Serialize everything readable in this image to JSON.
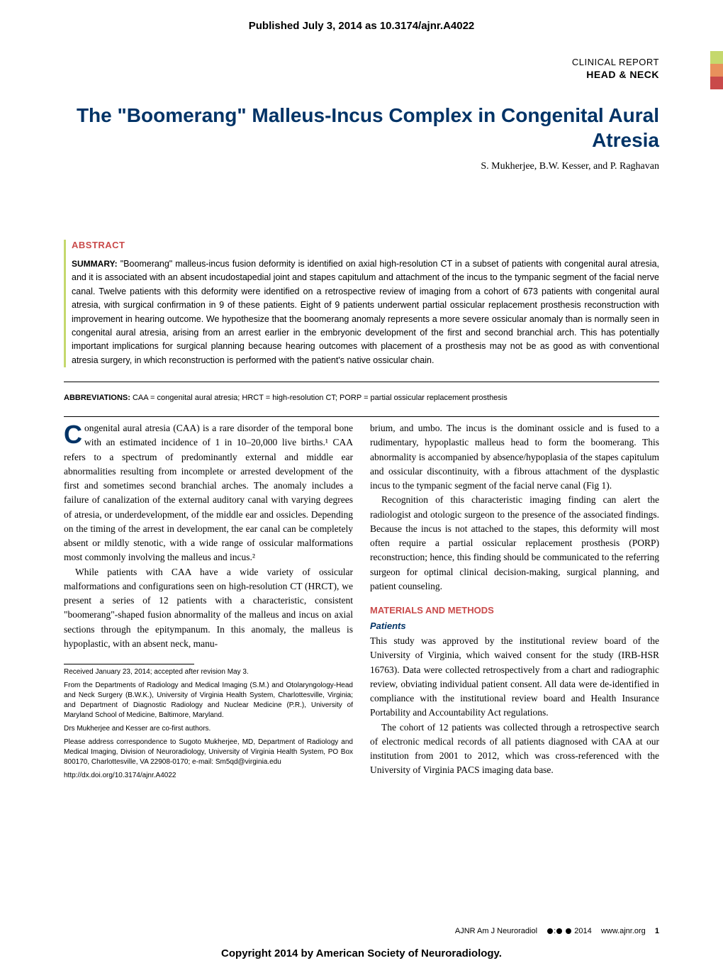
{
  "top_banner": "Published July 3, 2014 as 10.3174/ajnr.A4022",
  "header": {
    "report_type": "CLINICAL REPORT",
    "section": "HEAD & NECK",
    "edge_bars": [
      "#c5d86d",
      "#e8915c",
      "#c94a4a"
    ]
  },
  "title": "The \"Boomerang\" Malleus-Incus Complex in Congenital Aural Atresia",
  "authors": "S. Mukherjee, B.W. Kesser, and P. Raghavan",
  "abstract": {
    "heading": "ABSTRACT",
    "summary_label": "SUMMARY:",
    "body": "\"Boomerang\" malleus-incus fusion deformity is identified on axial high-resolution CT in a subset of patients with congenital aural atresia, and it is associated with an absent incudostapedial joint and stapes capitulum and attachment of the incus to the tympanic segment of the facial nerve canal. Twelve patients with this deformity were identified on a retrospective review of imaging from a cohort of 673 patients with congenital aural atresia, with surgical confirmation in 9 of these patients. Eight of 9 patients underwent partial ossicular replacement prosthesis reconstruction with improvement in hearing outcome. We hypothesize that the boomerang anomaly represents a more severe ossicular anomaly than is normally seen in congenital aural atresia, arising from an arrest earlier in the embryonic development of the first and second branchial arch. This has potentially important implications for surgical planning because hearing outcomes with placement of a prosthesis may not be as good as with conventional atresia surgery, in which reconstruction is performed with the patient's native ossicular chain."
  },
  "abbreviations": {
    "label": "ABBREVIATIONS:",
    "text": "CAA = congenital aural atresia; HRCT = high-resolution CT; PORP = partial ossicular replacement prosthesis"
  },
  "body_left": {
    "p1_dropcap": "C",
    "p1": "ongenital aural atresia (CAA) is a rare disorder of the temporal bone with an estimated incidence of 1 in 10–20,000 live births.¹ CAA refers to a spectrum of predominantly external and middle ear abnormalities resulting from incomplete or arrested development of the first and sometimes second branchial arches. The anomaly includes a failure of canalization of the external auditory canal with varying degrees of atresia, or underdevelopment, of the middle ear and ossicles. Depending on the timing of the arrest in development, the ear canal can be completely absent or mildly stenotic, with a wide range of ossicular malformations most commonly involving the malleus and incus.²",
    "p2": "While patients with CAA have a wide variety of ossicular malformations and configurations seen on high-resolution CT (HRCT), we present a series of 12 patients with a characteristic, consistent \"boomerang\"-shaped fusion abnormality of the malleus and incus on axial sections through the epitympanum. In this anomaly, the malleus is hypoplastic, with an absent neck, manu-"
  },
  "body_right": {
    "p1": "brium, and umbo. The incus is the dominant ossicle and is fused to a rudimentary, hypoplastic malleus head to form the boomerang. This abnormality is accompanied by absence/hypoplasia of the stapes capitulum and ossicular discontinuity, with a fibrous attachment of the dysplastic incus to the tympanic segment of the facial nerve canal (Fig 1).",
    "p2": "Recognition of this characteristic imaging finding can alert the radiologist and otologic surgeon to the presence of the associated findings. Because the incus is not attached to the stapes, this deformity will most often require a partial ossicular replacement prosthesis (PORP) reconstruction; hence, this finding should be communicated to the referring surgeon for optimal clinical decision-making, surgical planning, and patient counseling.",
    "mm_heading": "MATERIALS AND METHODS",
    "sub_heading": "Patients",
    "p3": "This study was approved by the institutional review board of the University of Virginia, which waived consent for the study (IRB-HSR 16763). Data were collected retrospectively from a chart and radiographic review, obviating individual patient consent. All data were de-identified in compliance with the institutional review board and Health Insurance Portability and Accountability Act regulations.",
    "p4": "The cohort of 12 patients was collected through a retrospective search of electronic medical records of all patients diagnosed with CAA at our institution from 2001 to 2012, which was cross-referenced with the University of Virginia PACS imaging data base."
  },
  "footnotes": {
    "received": "Received January 23, 2014; accepted after revision May 3.",
    "affiliations": "From the Departments of Radiology and Medical Imaging (S.M.) and Otolaryngology-Head and Neck Surgery (B.W.K.), University of Virginia Health System, Charlottesville, Virginia; and Department of Diagnostic Radiology and Nuclear Medicine (P.R.), University of Maryland School of Medicine, Baltimore, Maryland.",
    "cofirst": "Drs Mukherjee and Kesser are co-first authors.",
    "correspondence": "Please address correspondence to Sugoto Mukherjee, MD, Department of Radiology and Medical Imaging, Division of Neuroradiology, University of Virginia Health System, PO Box 800170, Charlottesville, VA 22908-0170; e-mail: Sm5qd@virginia.edu",
    "doi": "http://dx.doi.org/10.3174/ajnr.A4022"
  },
  "footer": {
    "journal": "AJNR Am J Neuroradiol",
    "year": "2014",
    "site": "www.ajnr.org",
    "page": "1"
  },
  "copyright": "Copyright 2014 by American Society of Neuroradiology."
}
